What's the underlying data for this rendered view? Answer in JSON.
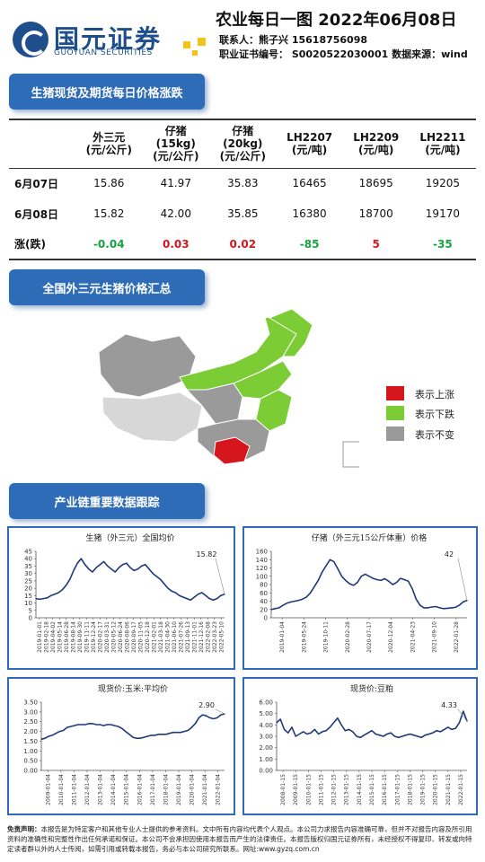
{
  "header": {
    "logo_cn": "国元证券",
    "logo_en": "GUOYUAN SECURITIES",
    "title": "农业每日一图   2022年06月08日",
    "contact": "联系人：熊子兴   15618756098",
    "license": "职业证书编号：  S0020522030001    数据来源：wind"
  },
  "sections": {
    "s1": "生猪现货及期货每日价格涨跌",
    "s2": "全国外三元生猪价格汇总",
    "s3": "产业链重要数据跟踪"
  },
  "price_table": {
    "columns": [
      "外三元\n(元/公斤)",
      "仔猪\n(15kg)\n(元/公斤)",
      "仔猪\n(20kg)\n(元/公斤)",
      "LH2207\n(元/吨)",
      "LH2209\n(元/吨)",
      "LH2211\n(元/吨)"
    ],
    "rows": [
      {
        "label": "6月07日",
        "values": [
          "15.86",
          "41.97",
          "35.83",
          "16465",
          "18695",
          "19205"
        ]
      },
      {
        "label": "6月08日",
        "values": [
          "15.82",
          "42.00",
          "35.85",
          "16380",
          "18700",
          "19170"
        ]
      },
      {
        "label": "涨(跌)",
        "values": [
          "-0.04",
          "0.03",
          "0.02",
          "-85",
          "5",
          "-35"
        ],
        "colors": [
          "green",
          "red",
          "red",
          "green",
          "red",
          "green"
        ]
      }
    ]
  },
  "map_legend": [
    {
      "label": "表示上涨",
      "color": "#d5161d"
    },
    {
      "label": "表示下跌",
      "color": "#7ccc35"
    },
    {
      "label": "表示不变",
      "color": "#9a9a9a"
    }
  ],
  "disclaimer": {
    "bold": "免责声明：",
    "text": "本报告是为特定客户和其他专业人士提供的参考资料。文中所有内容均代表个人观点。本公司力求报告内容准确可靠，但并不对报告内容及所引用资料的准确性和完整性作出任何承诺和保证。本公司不会承担因使用本报告而产生的法律责任。本报告版权归国元证券所有，未经授权不得复印、转发或向特定读者群以外的人士传阅，如需引用或转载本报告，务必与本公司研究所联系。网址:www.gyzq.com.cn"
  },
  "chart_data": [
    {
      "type": "line",
      "title": "生猪（外三元）全国均价",
      "annotation": "15.82",
      "ylim": [
        0,
        45
      ],
      "yticks": [
        "0",
        "5",
        "10",
        "15",
        "20",
        "25",
        "30",
        "35",
        "40",
        "45"
      ],
      "xticks": [
        "2019-01-01",
        "2019-02-18",
        "2019-04-02",
        "2019-05-14",
        "2019-06-28",
        "2019-08-14",
        "2019-09-30",
        "2019-11-11",
        "2019-12-24",
        "2020-02-17",
        "2020-03-31",
        "2020-05-12",
        "2020-06-24",
        "2020-08-06",
        "2020-09-17",
        "2020-11-05",
        "2020-12-18",
        "2021-02-01",
        "2021-03-18",
        "2021-04-30",
        "2021-06-10",
        "2021-07-26",
        "2021-09-13",
        "2021-11-01",
        "2021-12-16",
        "2022-02-08",
        "2022-03-23",
        "2022-05-10"
      ],
      "x": [
        0,
        2,
        4,
        6,
        8,
        10,
        12,
        14,
        16,
        18,
        20,
        22,
        24,
        26,
        28,
        30,
        32,
        34,
        36,
        38,
        40,
        42,
        44,
        46,
        48,
        50,
        52,
        54,
        56,
        58,
        60,
        62,
        64,
        66,
        68,
        70,
        72,
        74,
        76,
        78,
        80,
        82,
        84,
        86,
        88,
        90,
        92,
        94,
        96,
        98,
        100
      ],
      "values": [
        13,
        12.5,
        13,
        13.5,
        15,
        16,
        17,
        19,
        22,
        26,
        32,
        37,
        40,
        36,
        33,
        31,
        34,
        36,
        38,
        35,
        33,
        31,
        34,
        36,
        37,
        34,
        32,
        33,
        35,
        36,
        33,
        30,
        28,
        26,
        23,
        20,
        18,
        17,
        15,
        14,
        13,
        12,
        14,
        16,
        17,
        15,
        13,
        12,
        13,
        15,
        16
      ]
    },
    {
      "type": "line",
      "title": "仔猪（外三元15公斤体重）价格",
      "annotation": "42",
      "ylim": [
        0,
        160
      ],
      "yticks": [
        "0",
        "20",
        "40",
        "60",
        "80",
        "100",
        "120",
        "140",
        "160"
      ],
      "xticks": [
        "2019-01-04",
        "2019-05-24",
        "2019-10-11",
        "2020-02-28",
        "2020-07-17",
        "2020-12-04",
        "2021-04-23",
        "2021-09-10",
        "2022-01-28"
      ],
      "x": [
        0,
        2,
        4,
        6,
        8,
        10,
        12,
        14,
        16,
        18,
        20,
        22,
        24,
        26,
        28,
        30,
        32,
        34,
        36,
        38,
        40,
        42,
        44,
        46,
        48,
        50,
        52,
        54,
        56,
        58,
        60,
        62,
        64,
        66,
        68,
        70,
        72,
        74,
        76,
        78,
        80,
        82,
        84,
        86,
        88,
        90,
        92,
        94,
        96,
        98,
        100
      ],
      "values": [
        20,
        22,
        24,
        30,
        35,
        38,
        40,
        42,
        45,
        50,
        60,
        75,
        90,
        110,
        125,
        140,
        135,
        118,
        100,
        90,
        82,
        78,
        85,
        100,
        105,
        100,
        95,
        92,
        90,
        94,
        88,
        80,
        85,
        95,
        92,
        88,
        70,
        45,
        30,
        24,
        24,
        26,
        27,
        24,
        22,
        23,
        24,
        25,
        30,
        38,
        42
      ]
    },
    {
      "type": "line",
      "title": "现货价:玉米:平均价",
      "annotation": "2.90",
      "ylim": [
        0,
        3.5
      ],
      "yticks": [
        "0.00",
        "0.50",
        "1.00",
        "1.50",
        "2.00",
        "2.50",
        "3.00",
        "3.50"
      ],
      "xticks": [
        "2009-01-04",
        "2010-01-04",
        "2011-01-04",
        "2012-01-04",
        "2013-01-04",
        "2014-01-04",
        "2015-01-04",
        "2016-01-04",
        "2017-01-04",
        "2018-01-04",
        "2019-01-04",
        "2020-01-04",
        "2021-01-04",
        "2022-01-04"
      ],
      "x": [
        0,
        2,
        4,
        6,
        8,
        10,
        12,
        14,
        16,
        18,
        20,
        22,
        24,
        26,
        28,
        30,
        32,
        34,
        36,
        38,
        40,
        42,
        44,
        46,
        48,
        50,
        52,
        54,
        56,
        58,
        60,
        62,
        64,
        66,
        68,
        70,
        72,
        74,
        76,
        78,
        80,
        82,
        84,
        86,
        88,
        90,
        92,
        94,
        96,
        98,
        100
      ],
      "values": [
        1.6,
        1.65,
        1.75,
        1.8,
        1.9,
        2.0,
        2.05,
        2.2,
        2.25,
        2.3,
        2.35,
        2.35,
        2.35,
        2.4,
        2.4,
        2.35,
        2.35,
        2.3,
        2.35,
        2.35,
        2.3,
        2.25,
        2.15,
        2.0,
        1.85,
        1.7,
        1.65,
        1.65,
        1.7,
        1.75,
        1.8,
        1.8,
        1.85,
        1.85,
        1.85,
        1.9,
        1.95,
        1.95,
        1.95,
        2.0,
        2.05,
        2.2,
        2.4,
        2.7,
        2.85,
        2.8,
        2.7,
        2.65,
        2.7,
        2.85,
        2.9
      ]
    },
    {
      "type": "line",
      "title": "现货价:豆粕",
      "annotation": "4.33",
      "ylim": [
        0,
        6
      ],
      "yticks": [
        "0.00",
        "1.00",
        "2.00",
        "3.00",
        "4.00",
        "5.00",
        "6.00"
      ],
      "xticks": [
        "2008-01-15",
        "2009-01-15",
        "2010-01-15",
        "2011-01-15",
        "2012-01-15",
        "2013-01-15",
        "2014-01-15",
        "2015-01-15",
        "2016-01-15",
        "2017-01-15",
        "2018-01-15",
        "2019-01-15",
        "2020-01-15",
        "2021-01-15",
        "2022-01-15"
      ],
      "x": [
        0,
        2,
        4,
        6,
        8,
        10,
        12,
        14,
        16,
        18,
        20,
        22,
        24,
        26,
        28,
        30,
        32,
        34,
        36,
        38,
        40,
        42,
        44,
        46,
        48,
        50,
        52,
        54,
        56,
        58,
        60,
        62,
        64,
        66,
        68,
        70,
        72,
        74,
        76,
        78,
        80,
        82,
        84,
        86,
        88,
        90,
        92,
        94,
        96,
        98,
        100
      ],
      "values": [
        4.2,
        4.5,
        3.6,
        3.3,
        3.8,
        3.0,
        3.2,
        3.4,
        3.2,
        3.3,
        3.6,
        3.2,
        3.4,
        3.5,
        3.8,
        4.2,
        4.6,
        4.0,
        3.5,
        3.6,
        3.4,
        3.0,
        2.9,
        3.1,
        3.3,
        3.5,
        3.2,
        3.1,
        3.0,
        3.2,
        3.3,
        3.0,
        2.9,
        3.0,
        3.1,
        3.2,
        3.1,
        3.0,
        2.9,
        3.1,
        3.2,
        3.3,
        3.5,
        3.4,
        3.6,
        3.8,
        3.6,
        3.7,
        4.2,
        5.2,
        4.33
      ]
    }
  ]
}
